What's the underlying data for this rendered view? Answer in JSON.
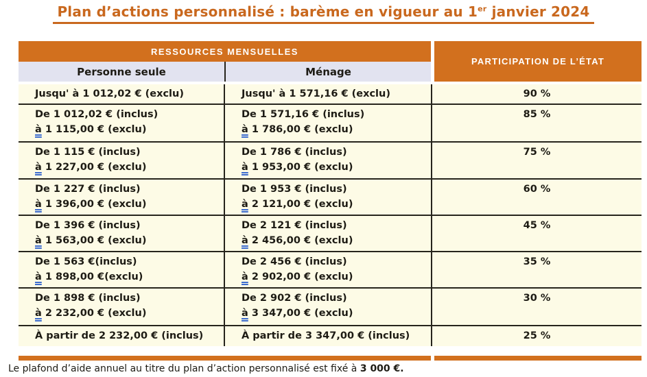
{
  "title": {
    "text": "Plan d’actions personnalisé : barème en vigueur au 1",
    "sup": "er",
    "suffix": " janvier 2024"
  },
  "colors": {
    "accent_orange": "#d2701e",
    "title_orange": "#c9681e",
    "row_cream": "#fdfbe6",
    "subheader_lavender": "#e2e3f0",
    "grid_black": "#26241c",
    "grammar_underline_blue": "#3c6ccf"
  },
  "table": {
    "group_header": "RESSOURCES MENSUELLES",
    "participation_header": "PARTICIPATION DE L’ÉTAT",
    "col_headers": {
      "single": "Personne seule",
      "household": "Ménage"
    },
    "rows": [
      {
        "single": [
          "Jusqu' à 1 012,02 € (exclu)"
        ],
        "household": [
          "Jusqu' à 1 571,16 € (exclu)"
        ],
        "participation": "90 %"
      },
      {
        "single": [
          "De 1 012,02 € (inclus)",
          "à 1 115,00 € (exclu)"
        ],
        "household": [
          "De 1 571,16 € (inclus)",
          "à 1 786,00 € (exclu)"
        ],
        "participation": "85 %"
      },
      {
        "single": [
          "De 1 115 € (inclus)",
          "à 1 227,00 € (exclu)"
        ],
        "household": [
          "De 1 786 € (inclus)",
          "à 1 953,00 € (exclu)"
        ],
        "participation": "75 %"
      },
      {
        "single": [
          "De 1 227 € (inclus)",
          "à 1 396,00 € (exclu)"
        ],
        "household": [
          "De 1 953 € (inclus)",
          "à 2 121,00 € (exclu)"
        ],
        "participation": "60 %"
      },
      {
        "single": [
          "De 1 396 € (inclus)",
          "à 1 563,00 € (exclu)"
        ],
        "household": [
          "De 2 121 € (inclus)",
          "à 2 456,00 € (exclu)"
        ],
        "participation": "45 %"
      },
      {
        "single": [
          "De 1 563 €(inclus)",
          "à 1 898,00 €(exclu)"
        ],
        "household": [
          "De 2 456 € (inclus)",
          "à 2 902,00 € (exclu)"
        ],
        "participation": "35 %"
      },
      {
        "single": [
          "De 1 898 € (inclus)",
          "à 2 232,00 € (exclu)"
        ],
        "household": [
          "De 2 902 € (inclus)",
          "à 3 347,00 € (exclu)"
        ],
        "participation": "30 %"
      },
      {
        "single": [
          "À partir de 2 232,00 € (inclus)"
        ],
        "household": [
          "À partir de 3 347,00 € (inclus)"
        ],
        "participation": "25 %"
      }
    ]
  },
  "footer": {
    "text": "Le plafond d’aide annuel au titre du plan d’action personnalisé est fixé à ",
    "bold": "3 000 €."
  }
}
